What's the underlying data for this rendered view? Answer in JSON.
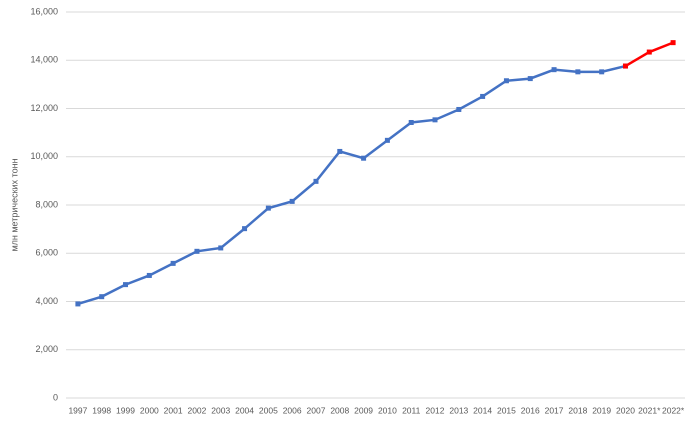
{
  "chart_data": {
    "type": "line",
    "y_label": "млн метрических тонн",
    "categories": [
      "1997",
      "1998",
      "1999",
      "2000",
      "2001",
      "2002",
      "2003",
      "2004",
      "2005",
      "2006",
      "2007",
      "2008",
      "2009",
      "2010",
      "2011",
      "2012",
      "2013",
      "2014",
      "2015",
      "2016",
      "2017",
      "2018",
      "2019",
      "2020",
      "2021*",
      "2022*"
    ],
    "series": [
      {
        "color": "#4472c4",
        "values": [
          3900,
          4200,
          4700,
          5080,
          5580,
          6080,
          6220,
          7020,
          7870,
          8150,
          8980,
          10220,
          9940,
          10680,
          11420,
          11530,
          11960,
          12500,
          13150,
          13240,
          13610,
          13520,
          13520,
          13760,
          null,
          null
        ]
      },
      {
        "color": "#ff0000",
        "values": [
          null,
          null,
          null,
          null,
          null,
          null,
          null,
          null,
          null,
          null,
          null,
          null,
          null,
          null,
          null,
          null,
          null,
          null,
          null,
          null,
          null,
          null,
          null,
          13760,
          14340,
          14730
        ]
      }
    ],
    "ylim": [
      0,
      16000
    ],
    "yticks": [
      0,
      {
        "value": 2000,
        "label": "2,000"
      },
      {
        "value": 4000,
        "label": "4,000"
      },
      {
        "value": 6000,
        "label": "6,000"
      },
      {
        "value": 8000,
        "label": "8,000"
      },
      {
        "value": 10000,
        "label": "10,000"
      },
      {
        "value": 12000,
        "label": "12,000"
      },
      {
        "value": 14000,
        "label": "14,000"
      },
      {
        "value": 16000,
        "label": "16,000"
      }
    ],
    "grid": true
  }
}
